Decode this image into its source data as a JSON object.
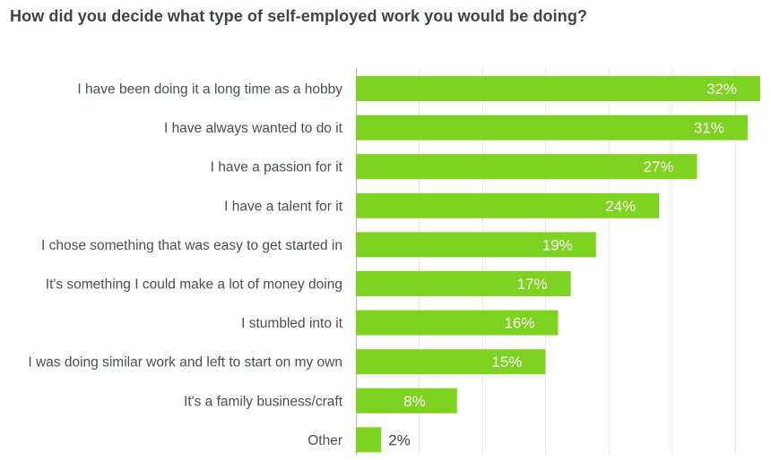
{
  "chart_data": {
    "type": "bar",
    "orientation": "horizontal",
    "title": "How did you decide what type of self-employed work you would be doing?",
    "categories": [
      "I have been doing it a long time as a hobby",
      "I have always wanted to do it",
      "I have a passion for it",
      "I have a talent for it",
      "I chose something that was easy to get started in",
      "It's something I could make a lot of money doing",
      "I stumbled into it",
      "I was doing similar work and left to start on my own",
      "It's a family business/craft",
      "Other"
    ],
    "values": [
      32,
      31,
      27,
      24,
      19,
      17,
      16,
      15,
      8,
      2
    ],
    "value_labels": [
      "32%",
      "31%",
      "27%",
      "24%",
      "19%",
      "17%",
      "16%",
      "15%",
      "8%",
      "2%"
    ],
    "unit": "%",
    "xlim": [
      0,
      32
    ],
    "grid": true,
    "legend": "none",
    "bar_color": "#7ed321",
    "label_inside_color": "#ffffff",
    "label_outside_color": "#3f4447"
  }
}
